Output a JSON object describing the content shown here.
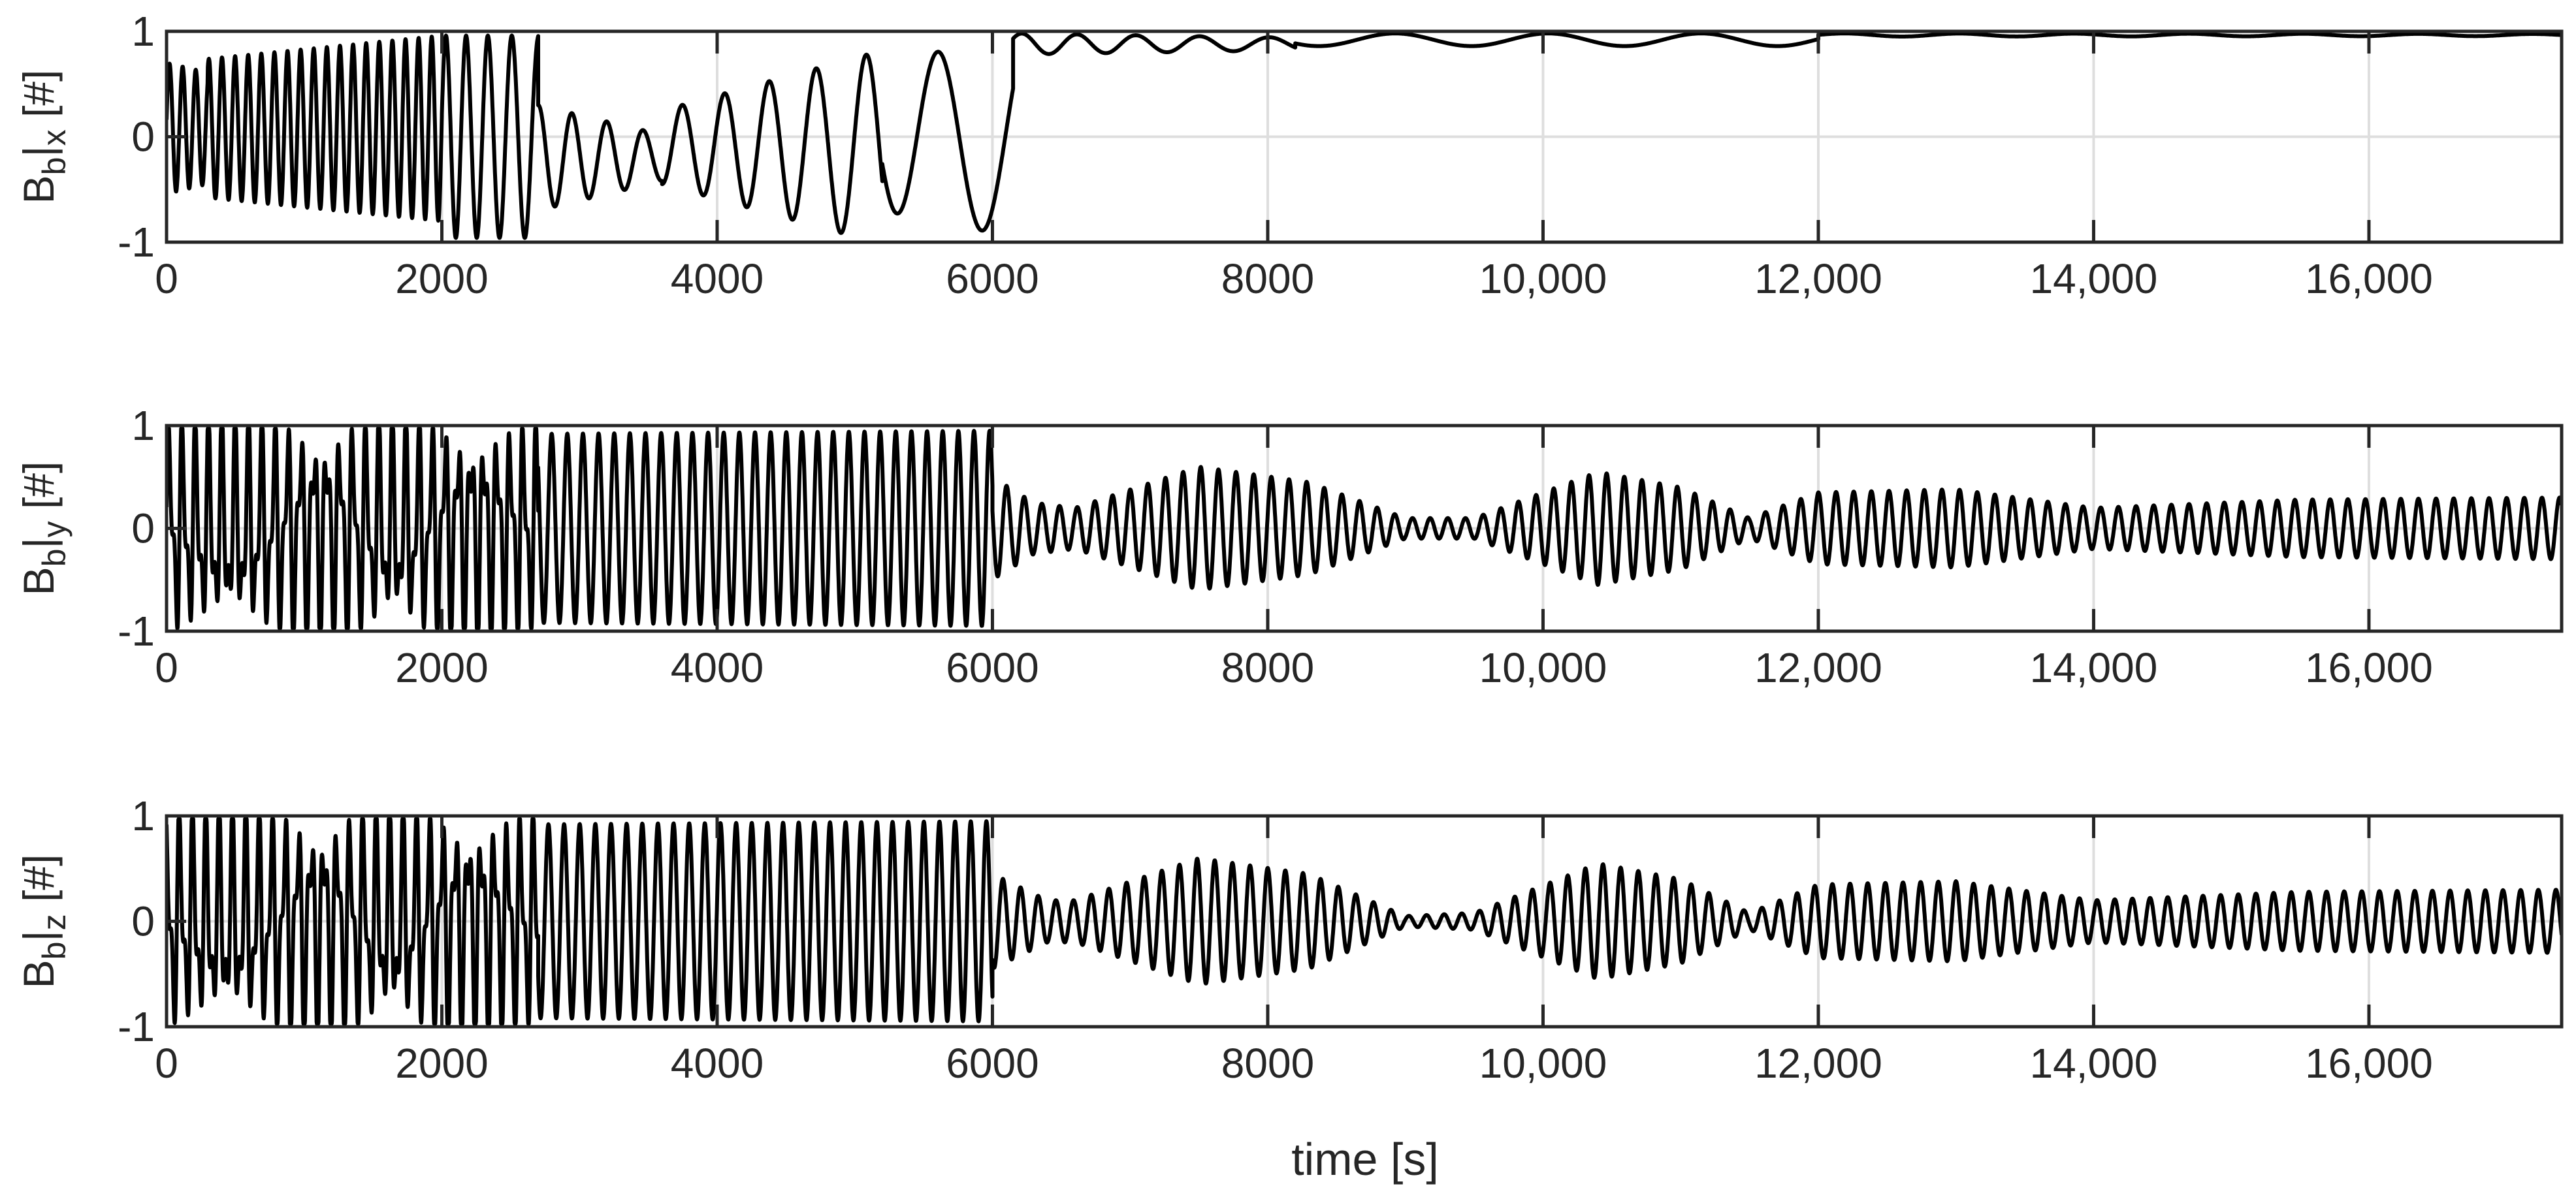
{
  "figure": {
    "xlabel": "time [s]"
  },
  "chart_data": [
    {
      "type": "line",
      "ylabel": {
        "base": "B",
        "sub1": "b",
        "bar": "|",
        "sub2": "x",
        "unit": " [#]"
      },
      "xlim": [
        0,
        17400
      ],
      "ylim": [
        -1,
        1
      ],
      "grid": true,
      "xticks": [
        0,
        2000,
        4000,
        6000,
        8000,
        10000,
        12000,
        14000,
        16000
      ],
      "xtick_labels": [
        "0",
        "2000",
        "4000",
        "6000",
        "8000",
        "10,000",
        "12,000",
        "14,000",
        "16,000"
      ],
      "yticks": [
        -1,
        0,
        1
      ],
      "ytick_labels": [
        "-1",
        "0",
        "1"
      ],
      "color": "#000000",
      "segments": [
        {
          "t0": 0,
          "t1": 2000,
          "offset": 0.08,
          "amp": [
            0.62,
            0.88
          ],
          "freq": [
            0.0105,
            0.0105
          ],
          "decay": 0.01
        },
        {
          "t0": 2000,
          "t1": 2700,
          "offset": 0.0,
          "amp": [
            0.96,
            0.96
          ],
          "freq": [
            0.0072,
            0.0048
          ]
        },
        {
          "t0": 2700,
          "t1": 3600,
          "offset": -0.2,
          "amp": [
            0.5,
            0.22
          ],
          "freq": [
            0.0042,
            0.0036
          ]
        },
        {
          "t0": 3600,
          "t1": 5200,
          "offset": -0.1,
          "amp": [
            0.35,
            0.92
          ],
          "freq": [
            0.0034,
            0.0026
          ]
        },
        {
          "t0": 5200,
          "t1": 6150,
          "offset": 0.0,
          "amp": [
            0.7,
            0.95
          ],
          "freq": [
            0.0018,
            0.0014
          ]
        },
        {
          "t0": 6150,
          "t1": 8200,
          "offset": 0.88,
          "amp": [
            0.1,
            0.06
          ],
          "freq": [
            0.0026,
            0.0018
          ]
        },
        {
          "t0": 8200,
          "t1": 12000,
          "offset": 0.92,
          "amp": [
            0.06,
            0.06
          ],
          "freq": [
            0.0009,
            0.0009
          ]
        },
        {
          "t0": 12000,
          "t1": 17400,
          "offset": 0.965,
          "amp": [
            0.015,
            0.01
          ],
          "freq": [
            0.0012,
            0.0012
          ]
        }
      ]
    },
    {
      "type": "line",
      "ylabel": {
        "base": "B",
        "sub1": "b",
        "bar": "|",
        "sub2": "y",
        "unit": " [#]"
      },
      "xlim": [
        0,
        17400
      ],
      "ylim": [
        -1,
        1
      ],
      "grid": true,
      "xticks": [
        0,
        2000,
        4000,
        6000,
        8000,
        10000,
        12000,
        14000,
        16000
      ],
      "xtick_labels": [
        "0",
        "2000",
        "4000",
        "6000",
        "8000",
        "10,000",
        "12,000",
        "14,000",
        "16,000"
      ],
      "yticks": [
        -1,
        0,
        1
      ],
      "ytick_labels": [
        "-1",
        "0",
        "1"
      ],
      "color": "#000000",
      "segments": [
        {
          "t0": 0,
          "t1": 2700,
          "offset": 0.0,
          "amp": [
            0.95,
            0.95
          ],
          "freq": [
            0.0105,
            0.0105
          ],
          "chaotic": true
        },
        {
          "t0": 2700,
          "t1": 6000,
          "offset": 0.0,
          "amp": [
            0.92,
            0.95
          ],
          "freq": [
            0.0088,
            0.0088
          ]
        },
        {
          "t0": 6000,
          "t1": 17400,
          "offset": 0.0,
          "amp_envelope": [
            [
              6000,
              0.5
            ],
            [
              6300,
              0.25
            ],
            [
              6600,
              0.2
            ],
            [
              7500,
              0.6
            ],
            [
              8300,
              0.45
            ],
            [
              9000,
              0.1
            ],
            [
              9500,
              0.1
            ],
            [
              10400,
              0.55
            ],
            [
              11000,
              0.4
            ],
            [
              11500,
              0.1
            ],
            [
              12000,
              0.35
            ],
            [
              13000,
              0.38
            ],
            [
              14000,
              0.2
            ],
            [
              15500,
              0.28
            ],
            [
              17400,
              0.3
            ]
          ],
          "freq": [
            0.0078,
            0.0078
          ]
        }
      ]
    },
    {
      "type": "line",
      "ylabel": {
        "base": "B",
        "sub1": "b",
        "bar": "|",
        "sub2": "z",
        "unit": " [#]"
      },
      "xlim": [
        0,
        17400
      ],
      "ylim": [
        -1,
        1
      ],
      "grid": true,
      "xticks": [
        0,
        2000,
        4000,
        6000,
        8000,
        10000,
        12000,
        14000,
        16000
      ],
      "xtick_labels": [
        "0",
        "2000",
        "4000",
        "6000",
        "8000",
        "10,000",
        "12,000",
        "14,000",
        "16,000"
      ],
      "yticks": [
        -1,
        0,
        1
      ],
      "ytick_labels": [
        "-1",
        "0",
        "1"
      ],
      "color": "#000000",
      "segments": [
        {
          "t0": 0,
          "t1": 2700,
          "offset": 0.0,
          "amp": [
            0.95,
            0.95
          ],
          "freq": [
            0.0105,
            0.0105
          ],
          "chaotic": true,
          "phase": 1.3
        },
        {
          "t0": 2700,
          "t1": 6000,
          "offset": 0.0,
          "amp": [
            0.92,
            0.95
          ],
          "freq": [
            0.0088,
            0.0088
          ],
          "phase": 1.57
        },
        {
          "t0": 6000,
          "t1": 17400,
          "offset": 0.0,
          "amp_envelope": [
            [
              6000,
              0.45
            ],
            [
              6400,
              0.2
            ],
            [
              6600,
              0.2
            ],
            [
              7500,
              0.6
            ],
            [
              8300,
              0.45
            ],
            [
              9000,
              0.05
            ],
            [
              9500,
              0.08
            ],
            [
              10400,
              0.55
            ],
            [
              11000,
              0.4
            ],
            [
              11500,
              0.08
            ],
            [
              12000,
              0.35
            ],
            [
              13000,
              0.38
            ],
            [
              14000,
              0.2
            ],
            [
              15500,
              0.28
            ],
            [
              17400,
              0.3
            ]
          ],
          "freq": [
            0.0078,
            0.0078
          ],
          "phase": 1.57
        }
      ]
    }
  ]
}
